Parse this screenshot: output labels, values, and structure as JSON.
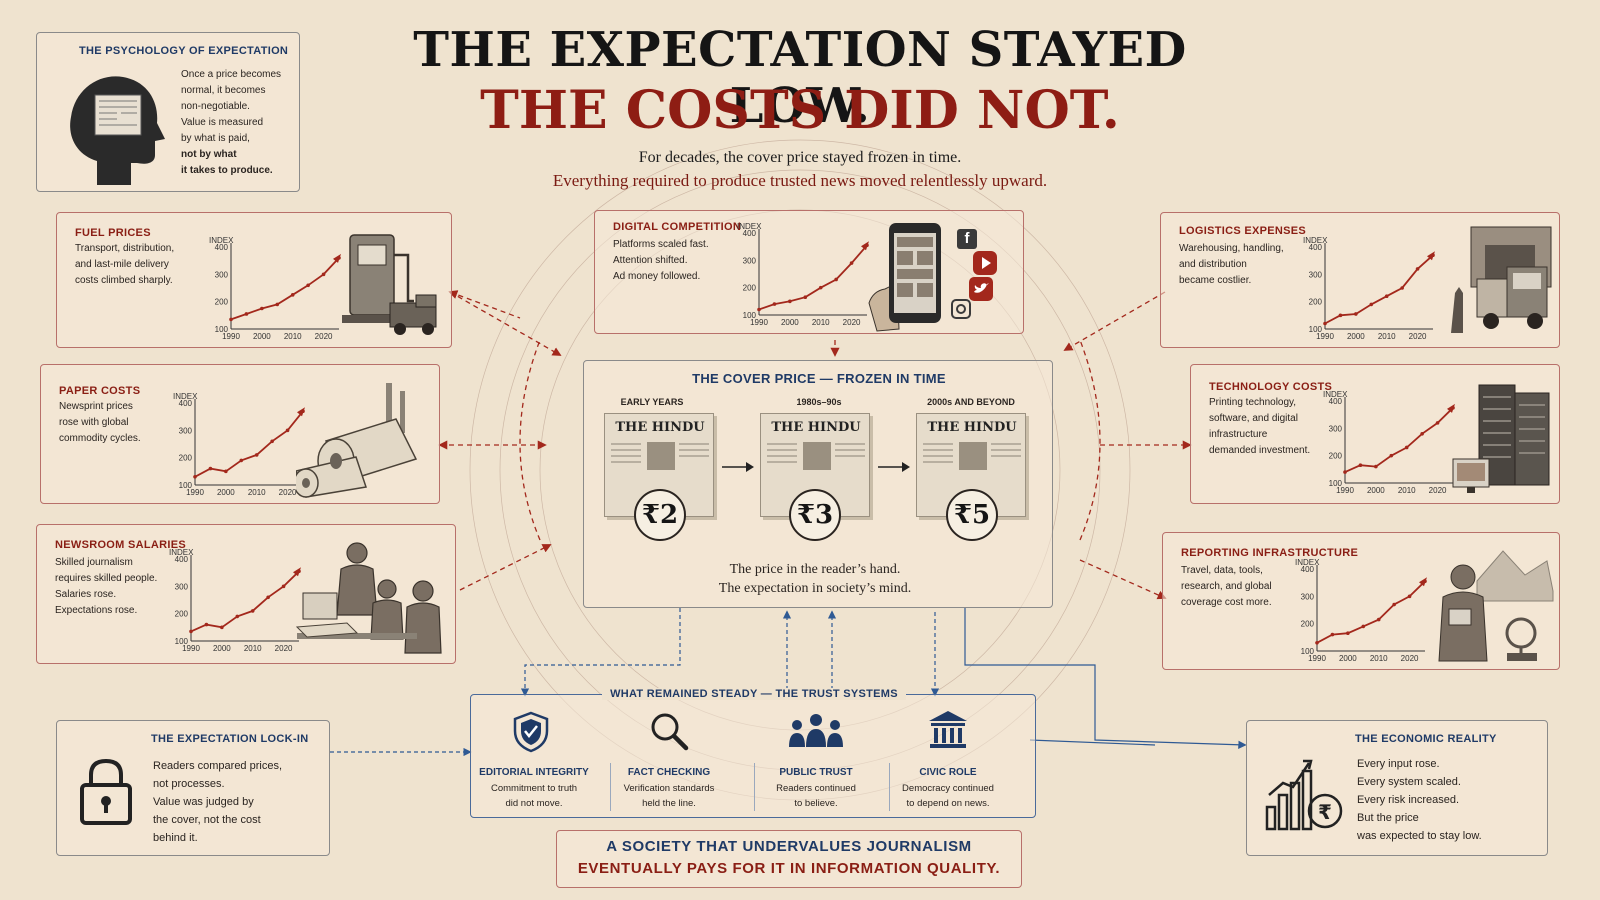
{
  "headline": {
    "line1": "THE EXPECTATION STAYED LOW.",
    "line2": "THE COSTS DID NOT.",
    "sub1": "For decades, the cover price stayed frozen in time.",
    "sub2": "Everything required to produce trusted news moved relentlessly upward."
  },
  "psychology": {
    "title": "THE PSYCHOLOGY OF EXPECTATION",
    "lines": [
      "Once a price becomes",
      "normal, it becomes",
      "non-negotiable.",
      "Value is measured",
      "by what is paid,",
      "not by what",
      "it takes to produce."
    ]
  },
  "cost_panels": {
    "fuel": {
      "title": "FUEL PRICES",
      "lines": [
        "Transport, distribution,",
        "and last-mile delivery",
        "costs climbed sharply."
      ]
    },
    "paper": {
      "title": "PAPER COSTS",
      "lines": [
        "Newsprint prices",
        "rose with global",
        "commodity cycles."
      ]
    },
    "salaries": {
      "title": "NEWSROOM SALARIES",
      "lines": [
        "Skilled journalism",
        "requires skilled people.",
        "Salaries rose.",
        "Expectations rose."
      ]
    },
    "digital": {
      "title": "DIGITAL COMPETITION",
      "lines": [
        "Platforms scaled fast.",
        "Attention shifted.",
        "Ad money followed."
      ]
    },
    "logistics": {
      "title": "LOGISTICS EXPENSES",
      "lines": [
        "Warehousing, handling,",
        "and distribution",
        "became costlier."
      ]
    },
    "technology": {
      "title": "TECHNOLOGY COSTS",
      "lines": [
        "Printing technology,",
        "software, and digital",
        "infrastructure",
        "demanded investment."
      ]
    },
    "reporting": {
      "title": "REPORTING INFRASTRUCTURE",
      "lines": [
        "Travel, data, tools,",
        "research, and global",
        "coverage cost more."
      ]
    }
  },
  "mini_chart": {
    "axis_label": "INDEX",
    "y_ticks": [
      "100",
      "200",
      "300",
      "400"
    ],
    "x_ticks": [
      "1990",
      "2000",
      "2010",
      "2020"
    ]
  },
  "chart_data": [
    {
      "type": "line",
      "title": "FUEL PRICES",
      "ylabel": "INDEX",
      "x": [
        1990,
        1995,
        2000,
        2005,
        2010,
        2015,
        2020,
        2025
      ],
      "values": [
        135,
        155,
        175,
        190,
        225,
        260,
        300,
        360
      ],
      "ylim": [
        100,
        400
      ]
    },
    {
      "type": "line",
      "title": "PAPER COSTS",
      "ylabel": "INDEX",
      "x": [
        1990,
        1995,
        2000,
        2005,
        2010,
        2015,
        2020,
        2025
      ],
      "values": [
        130,
        160,
        150,
        190,
        210,
        260,
        300,
        370
      ],
      "ylim": [
        100,
        400
      ]
    },
    {
      "type": "line",
      "title": "NEWSROOM SALARIES",
      "ylabel": "INDEX",
      "x": [
        1990,
        1995,
        2000,
        2005,
        2010,
        2015,
        2020,
        2025
      ],
      "values": [
        135,
        160,
        150,
        190,
        210,
        260,
        300,
        355
      ],
      "ylim": [
        100,
        400
      ]
    },
    {
      "type": "line",
      "title": "DIGITAL COMPETITION",
      "ylabel": "INDEX",
      "x": [
        1990,
        1995,
        2000,
        2005,
        2010,
        2015,
        2020,
        2025
      ],
      "values": [
        120,
        140,
        150,
        165,
        200,
        230,
        290,
        355
      ],
      "ylim": [
        100,
        400
      ]
    },
    {
      "type": "line",
      "title": "LOGISTICS EXPENSES",
      "ylabel": "INDEX",
      "x": [
        1990,
        1995,
        2000,
        2005,
        2010,
        2015,
        2020,
        2025
      ],
      "values": [
        120,
        150,
        155,
        190,
        220,
        250,
        320,
        370
      ],
      "ylim": [
        100,
        400
      ]
    },
    {
      "type": "line",
      "title": "TECHNOLOGY COSTS",
      "ylabel": "INDEX",
      "x": [
        1990,
        1995,
        2000,
        2005,
        2010,
        2015,
        2020,
        2025
      ],
      "values": [
        140,
        165,
        160,
        200,
        230,
        280,
        320,
        375
      ],
      "ylim": [
        100,
        400
      ]
    },
    {
      "type": "line",
      "title": "REPORTING INFRASTRUCTURE",
      "ylabel": "INDEX",
      "x": [
        1990,
        1995,
        2000,
        2005,
        2010,
        2015,
        2020,
        2025
      ],
      "values": [
        130,
        160,
        165,
        190,
        215,
        270,
        300,
        355
      ],
      "ylim": [
        100,
        400
      ]
    }
  ],
  "cover_price": {
    "title": "THE COVER PRICE — FROZEN IN TIME",
    "eras": [
      "EARLY YEARS",
      "1980s–90s",
      "2000s AND BEYOND"
    ],
    "masthead": "THE HINDU",
    "prices": [
      "₹2",
      "₹3",
      "₹5"
    ],
    "caption1": "The price in the reader’s hand.",
    "caption2": "The expectation in society’s mind."
  },
  "trust": {
    "title": "WHAT REMAINED STEADY — THE TRUST SYSTEMS",
    "items": [
      {
        "title": "EDITORIAL INTEGRITY",
        "line1": "Commitment to truth",
        "line2": "did not move."
      },
      {
        "title": "FACT CHECKING",
        "line1": "Verification standards",
        "line2": "held the line."
      },
      {
        "title": "PUBLIC TRUST",
        "line1": "Readers continued",
        "line2": "to believe."
      },
      {
        "title": "CIVIC ROLE",
        "line1": "Democracy continued",
        "line2": "to depend on news."
      }
    ]
  },
  "lockin": {
    "title": "THE EXPECTATION LOCK-IN",
    "lines": [
      "Readers compared prices,",
      "not processes.",
      "Value was judged by",
      "the cover, not the cost",
      "behind it."
    ]
  },
  "economic": {
    "title": "THE ECONOMIC REALITY",
    "lines": [
      "Every input rose.",
      "Every system scaled.",
      "Every risk increased.",
      "But the price",
      "was expected to stay low."
    ]
  },
  "footer": {
    "line1": "A SOCIETY THAT UNDERVALUES JOURNALISM",
    "line2": "EVENTUALLY PAYS FOR IT IN INFORMATION QUALITY."
  },
  "colors": {
    "background": "#efe3cf",
    "accent_red": "#8e1d14",
    "navy": "#1f3a66",
    "ink": "#151515"
  },
  "icons": [
    "head-silhouette-icon",
    "fuel-pump-icon",
    "paper-roll-icon",
    "journalists-icon",
    "smartphone-icon",
    "facebook-icon",
    "youtube-icon",
    "twitter-icon",
    "instagram-icon",
    "truck-icon",
    "server-rack-icon",
    "reporter-icon",
    "shield-check-icon",
    "magnifier-icon",
    "people-icon",
    "civic-building-icon",
    "padlock-icon",
    "rupee-bar-chart-icon"
  ]
}
